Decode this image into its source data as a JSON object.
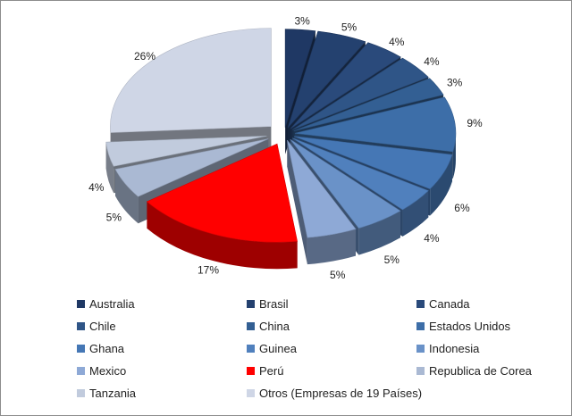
{
  "chart_data": {
    "type": "pie",
    "title": "",
    "legend_position": "bottom",
    "slices": [
      {
        "label": "Australia",
        "value": 3,
        "pct_label": "3%",
        "color": "#1f3864"
      },
      {
        "label": "Brasil",
        "value": 5,
        "pct_label": "5%",
        "color": "#24416f"
      },
      {
        "label": "Canada",
        "value": 4,
        "pct_label": "4%",
        "color": "#2a4a7b"
      },
      {
        "label": "Chile",
        "value": 4,
        "pct_label": "4%",
        "color": "#2f5587"
      },
      {
        "label": "China",
        "value": 3,
        "pct_label": "3%",
        "color": "#335f93"
      },
      {
        "label": "Estados Unidos",
        "value": 9,
        "pct_label": "9%",
        "color": "#3d6ea8"
      },
      {
        "label": "Ghana",
        "value": 6,
        "pct_label": "6%",
        "color": "#4577b5"
      },
      {
        "label": "Guinea",
        "value": 4,
        "pct_label": "4%",
        "color": "#5080bd"
      },
      {
        "label": "Indonesia",
        "value": 5,
        "pct_label": "5%",
        "color": "#6a92c8"
      },
      {
        "label": "Mexico",
        "value": 5,
        "pct_label": "5%",
        "color": "#8ea9d6"
      },
      {
        "label": "Perú",
        "value": 17,
        "pct_label": "17%",
        "color": "#ff0000"
      },
      {
        "label": "Republica de Corea",
        "value": 5,
        "pct_label": "5%",
        "color": "#aab9d3"
      },
      {
        "label": "Tanzania",
        "value": 4,
        "pct_label": "4%",
        "color": "#c1cbdd"
      },
      {
        "label": "Otros (Empresas de 19 Países)",
        "value": 26,
        "pct_label": "26%",
        "color": "#cfd6e6"
      }
    ]
  }
}
